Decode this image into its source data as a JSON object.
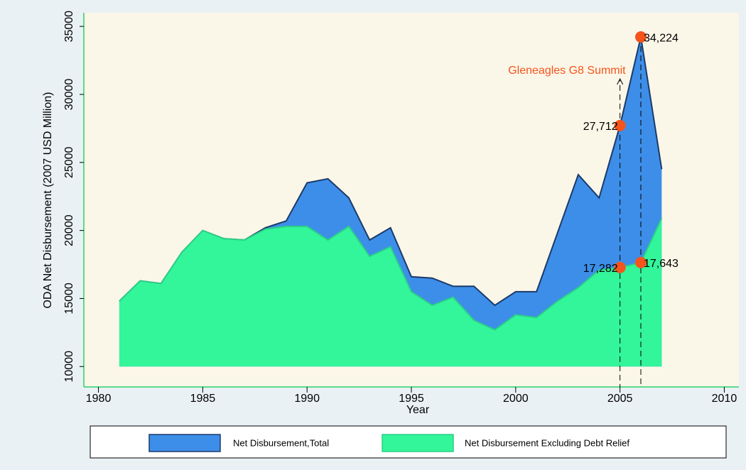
{
  "chart_data": {
    "type": "area",
    "x_label": "Year",
    "y_label": "ODA Net Disbursement (2007 USD Million)",
    "x": [
      1981,
      1982,
      1983,
      1984,
      1985,
      1986,
      1987,
      1988,
      1989,
      1990,
      1991,
      1992,
      1993,
      1994,
      1995,
      1996,
      1997,
      1998,
      1999,
      2000,
      2001,
      2002,
      2003,
      2004,
      2005,
      2006,
      2007
    ],
    "series": [
      {
        "name": "Net Disbursement,Total",
        "color": "#3d8ee8",
        "line_color": "#1c3a6a",
        "values": [
          14800,
          16300,
          16100,
          18400,
          20000,
          19400,
          19300,
          20200,
          20700,
          23500,
          23800,
          22400,
          19300,
          20200,
          16600,
          16500,
          15900,
          15900,
          14500,
          15500,
          15500,
          19800,
          24100,
          22400,
          27712,
          34224,
          24500
        ],
        "value_labels": [
          null,
          null,
          null,
          null,
          null,
          null,
          null,
          null,
          null,
          null,
          null,
          null,
          null,
          null,
          null,
          null,
          null,
          null,
          null,
          null,
          null,
          null,
          null,
          null,
          "27,712",
          "34,224",
          null
        ]
      },
      {
        "name": "Net Disbursement Excluding Debt Relief",
        "color": "#33f59a",
        "line_color": "#2ccf88",
        "values": [
          14800,
          16300,
          16100,
          18400,
          20000,
          19400,
          19300,
          20100,
          20300,
          20300,
          19300,
          20300,
          18100,
          18800,
          15500,
          14500,
          15100,
          13400,
          12700,
          13800,
          13600,
          14800,
          15800,
          17100,
          17282,
          17643,
          20900
        ],
        "value_labels": [
          null,
          null,
          null,
          null,
          null,
          null,
          null,
          null,
          null,
          null,
          null,
          null,
          null,
          null,
          null,
          null,
          null,
          null,
          null,
          null,
          null,
          null,
          null,
          null,
          "17,282",
          "17,643",
          null
        ]
      }
    ],
    "annotation": {
      "text": "Gleneagles G8 Summit",
      "x": 2005
    },
    "marker_color": "#f5541c",
    "xlim": [
      1979.3,
      2010.7
    ],
    "xticks": [
      1980,
      1985,
      1990,
      1995,
      2000,
      2005,
      2010
    ],
    "ylim": [
      8500,
      36000
    ],
    "yticks": [
      10000,
      15000,
      20000,
      25000,
      30000,
      35000
    ]
  }
}
